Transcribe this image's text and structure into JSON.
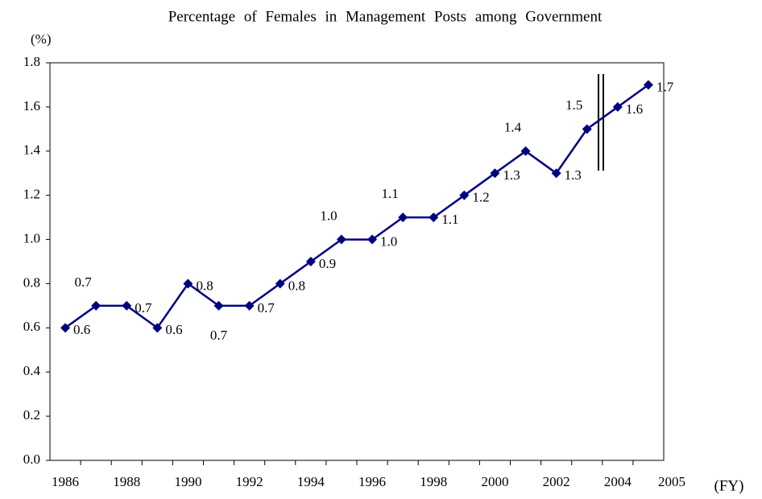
{
  "chart_data": {
    "type": "line",
    "title": "Percentage of Females in Management Posts among Government",
    "y_label": "(%)",
    "x_label": "(FY)",
    "categories": [
      "1986",
      null,
      "1988",
      null,
      "1990",
      null,
      "1992",
      null,
      "1994",
      null,
      "1996",
      null,
      "1998",
      null,
      "2000",
      null,
      "2002",
      null,
      "2004",
      "2005"
    ],
    "series": [
      {
        "name": "Percentage",
        "color": "#000080",
        "values": [
          0.6,
          0.7,
          0.7,
          0.6,
          0.8,
          0.7,
          0.7,
          0.8,
          0.9,
          1.0,
          1.0,
          1.1,
          1.1,
          1.2,
          1.3,
          1.4,
          1.3,
          1.5,
          1.6,
          1.7
        ],
        "value_labels": [
          "0.6",
          "0.7",
          "0.7",
          "0.6",
          "0.8",
          "0.7",
          "0.7",
          "0.8",
          "0.9",
          "1.0",
          "1.0",
          "1.1",
          "1.1",
          "1.2",
          "1.3",
          "1.4",
          "1.3",
          "1.5",
          "1.6",
          "1.7"
        ]
      }
    ],
    "ylim": [
      0,
      1.8
    ],
    "yticks": [
      {
        "value": 0,
        "label": "0.0"
      },
      0.2,
      0.4,
      0.6,
      0.8,
      {
        "value": 1,
        "label": "1.0"
      },
      1.2,
      1.4,
      1.6,
      1.8
    ],
    "grid": false
  }
}
